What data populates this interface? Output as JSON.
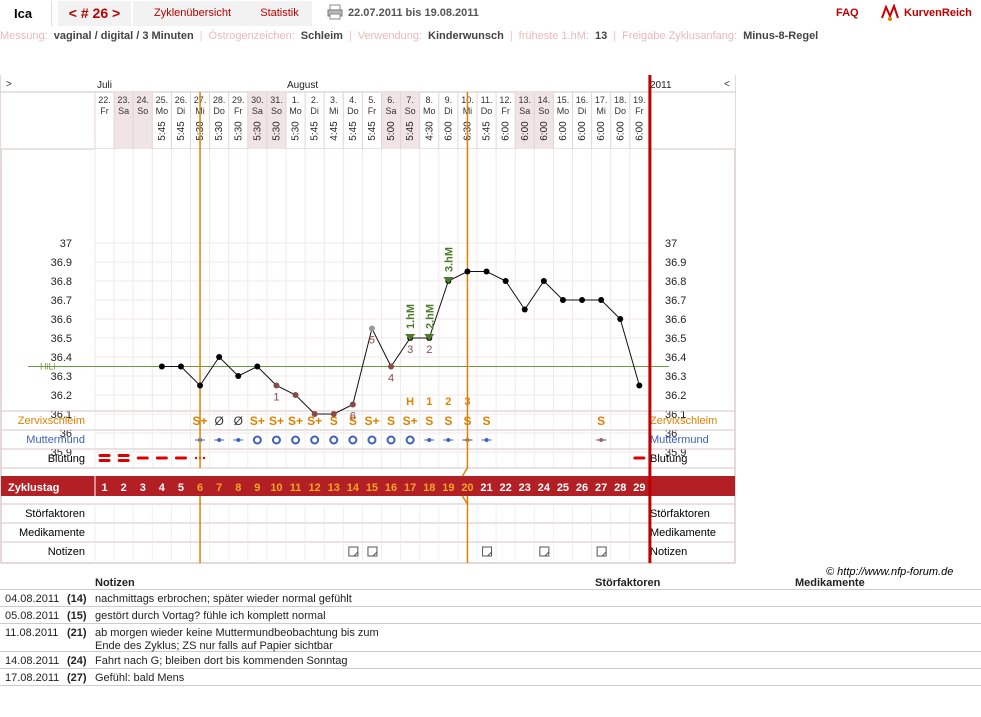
{
  "header": {
    "username": "Ica",
    "cycle_label": "< # 26 >",
    "overview_label": "Zyklenübersicht",
    "statistics_label": "Statistik",
    "date_range": "22.07.2011 bis 19.08.2011",
    "faq_label": "FAQ",
    "logo_text": "KurvenReich"
  },
  "info": [
    {
      "label": "Messung:",
      "value": "vaginal / digital / 3 Minuten"
    },
    {
      "label": "Östrogenzeichen:",
      "value": "Schleim"
    },
    {
      "label": "Verwendung:",
      "value": "Kinderwunsch"
    },
    {
      "label": "früheste 1.hM:",
      "value": "13"
    },
    {
      "label": "Freigabe Zyklusanfang:",
      "value": "Minus-8-Regel"
    }
  ],
  "months": {
    "m1": "Juli",
    "m2": "August",
    "year": "2011",
    "left_arrow": ">",
    "right_arrow": "<"
  },
  "days": [
    {
      "d": "22.",
      "w": "Fr",
      "t": ""
    },
    {
      "d": "23.",
      "w": "Sa",
      "t": ""
    },
    {
      "d": "24.",
      "w": "So",
      "t": ""
    },
    {
      "d": "25.",
      "w": "Mo",
      "t": "5:45"
    },
    {
      "d": "26.",
      "w": "Di",
      "t": "5:45"
    },
    {
      "d": "27.",
      "w": "Mi",
      "t": "5:30"
    },
    {
      "d": "28.",
      "w": "Do",
      "t": "5:30"
    },
    {
      "d": "29.",
      "w": "Fr",
      "t": "5:30"
    },
    {
      "d": "30.",
      "w": "Sa",
      "t": "5:30"
    },
    {
      "d": "31.",
      "w": "So",
      "t": "5:30"
    },
    {
      "d": "1.",
      "w": "Mo",
      "t": "5:30"
    },
    {
      "d": "2.",
      "w": "Di",
      "t": "5:45"
    },
    {
      "d": "3.",
      "w": "Mi",
      "t": "4:45"
    },
    {
      "d": "4.",
      "w": "Do",
      "t": "5:45"
    },
    {
      "d": "5.",
      "w": "Fr",
      "t": "5:45"
    },
    {
      "d": "6.",
      "w": "Sa",
      "t": "5:00"
    },
    {
      "d": "7.",
      "w": "So",
      "t": "5:45"
    },
    {
      "d": "8.",
      "w": "Mo",
      "t": "4:30"
    },
    {
      "d": "9.",
      "w": "Di",
      "t": "6:00"
    },
    {
      "d": "10.",
      "w": "Mi",
      "t": "6:30"
    },
    {
      "d": "11.",
      "w": "Do",
      "t": "5:45"
    },
    {
      "d": "12.",
      "w": "Fr",
      "t": "6:00"
    },
    {
      "d": "13.",
      "w": "Sa",
      "t": "6:00"
    },
    {
      "d": "14.",
      "w": "So",
      "t": "6:00"
    },
    {
      "d": "15.",
      "w": "Mo",
      "t": "6:00"
    },
    {
      "d": "16.",
      "w": "Di",
      "t": "6:00"
    },
    {
      "d": "17.",
      "w": "Mi",
      "t": "6:00"
    },
    {
      "d": "18.",
      "w": "Do",
      "t": "6:00"
    },
    {
      "d": "19.",
      "w": "Fr",
      "t": "6:00"
    }
  ],
  "chart_data": {
    "type": "line",
    "title": "",
    "x": [
      1,
      2,
      3,
      4,
      5,
      6,
      7,
      8,
      9,
      10,
      11,
      12,
      13,
      14,
      15,
      16,
      17,
      18,
      19,
      20,
      21,
      22,
      23,
      24,
      25,
      26,
      27,
      28,
      29
    ],
    "temperatures": [
      null,
      null,
      null,
      36.35,
      36.35,
      36.25,
      36.4,
      36.3,
      36.35,
      36.25,
      36.2,
      36.1,
      36.1,
      36.15,
      36.55,
      36.35,
      36.5,
      36.5,
      36.8,
      36.85,
      36.85,
      36.8,
      36.65,
      36.8,
      36.7,
      36.7,
      36.7,
      36.6,
      36.25
    ],
    "point_style": [
      "",
      "",
      "",
      "solid",
      "solid",
      "solid",
      "solid",
      "solid",
      "solid",
      "muted",
      "muted",
      "muted",
      "muted",
      "muted",
      "grey",
      "muted",
      "solid",
      "solid",
      "solid",
      "solid",
      "solid",
      "solid",
      "solid",
      "solid",
      "solid",
      "solid",
      "solid",
      "solid",
      "solid"
    ],
    "lower_count_labels": [
      {
        "day": 6,
        "label": "1"
      },
      {
        "day": 10,
        "label": "6"
      },
      {
        "day": 11,
        "label": "5"
      },
      {
        "day": 12,
        "label": "4"
      },
      {
        "day": 13,
        "label": "3"
      },
      {
        "day": 14,
        "label": "2"
      }
    ],
    "higher_labels": [
      {
        "day": 17,
        "label": "1.hM"
      },
      {
        "day": 18,
        "label": "2.hM"
      },
      {
        "day": 19,
        "label": "3.hM"
      }
    ],
    "yticks": [
      37,
      36.9,
      36.8,
      36.7,
      36.6,
      36.5,
      36.4,
      36.3,
      36.2,
      36.1,
      36,
      35.9
    ],
    "ylim": [
      35.85,
      37.0
    ],
    "hili_label": "HiLi",
    "hili_value": 36.35,
    "vertical_markers": [
      5.5,
      19.5
    ],
    "cervix_top_labels": [
      {
        "day": 17,
        "label": "H"
      },
      {
        "day": 18,
        "label": "1"
      },
      {
        "day": 19,
        "label": "2"
      },
      {
        "day": 20,
        "label": "3"
      }
    ],
    "cervical_mucus": [
      "",
      "",
      "",
      "",
      "",
      "S+",
      "Ø",
      "Ø",
      "S+",
      "S+",
      "S+",
      "S+",
      "S",
      "S",
      "S+",
      "S",
      "S+",
      "S",
      "S",
      "S",
      "S",
      "",
      "",
      "",
      "",
      "",
      "S",
      "",
      ""
    ],
    "cervix": [
      "",
      "",
      "",
      "",
      "",
      "hard-low",
      "hard-low",
      "hard-low",
      "open",
      "open",
      "open",
      "open",
      "open",
      "open",
      "open",
      "open",
      "open",
      "hard-low",
      "hard-low",
      "closed",
      "hard-low",
      "",
      "",
      "",
      "",
      "",
      "closed",
      "",
      ""
    ],
    "bleeding": [
      2,
      2,
      1,
      1,
      1,
      0.5,
      0,
      0,
      0,
      0,
      0,
      0,
      0,
      0,
      0,
      0,
      0,
      0,
      0,
      0,
      0,
      0,
      0,
      0,
      0,
      0,
      0,
      0,
      1
    ],
    "cycle_days": [
      1,
      2,
      3,
      4,
      5,
      6,
      7,
      8,
      9,
      10,
      11,
      12,
      13,
      14,
      15,
      16,
      17,
      18,
      19,
      20,
      21,
      22,
      23,
      24,
      25,
      26,
      27,
      28,
      29
    ],
    "note_days": [
      14,
      15,
      21,
      24,
      27
    ],
    "row_labels": {
      "mucus": "Zervixschleim",
      "cervix": "Muttermund",
      "bleeding": "Blutung",
      "cycle": "Zyklustag",
      "disturb": "Störfaktoren",
      "meds": "Medikamente",
      "notes": "Notizen"
    }
  },
  "colors": {
    "brand": "#b00000",
    "orange": "#e08000",
    "blue": "#4060c0",
    "green": "#4e7a2c",
    "hili": "#6c9a40"
  },
  "copyright": "© http://www.nfp-forum.de",
  "notes_table": {
    "headers": {
      "notes": "Notizen",
      "disturb": "Störfaktoren",
      "meds": "Medikamente"
    },
    "rows": [
      {
        "date": "04.08.2011",
        "day": "(14)",
        "text": "nachmittags erbrochen; später wieder normal gefühlt"
      },
      {
        "date": "05.08.2011",
        "day": "(15)",
        "text": "gestört durch Vortag? fühle ich komplett normal"
      },
      {
        "date": "11.08.2011",
        "day": "(21)",
        "text": "ab morgen wieder keine Muttermundbeobachtung bis zum",
        "text2": "Ende des Zyklus; ZS nur falls auf Papier sichtbar"
      },
      {
        "date": "14.08.2011",
        "day": "(24)",
        "text": "Fahrt nach G; bleiben dort bis kommenden Sonntag"
      },
      {
        "date": "17.08.2011",
        "day": "(27)",
        "text": "Gefühl: bald Mens"
      }
    ]
  }
}
